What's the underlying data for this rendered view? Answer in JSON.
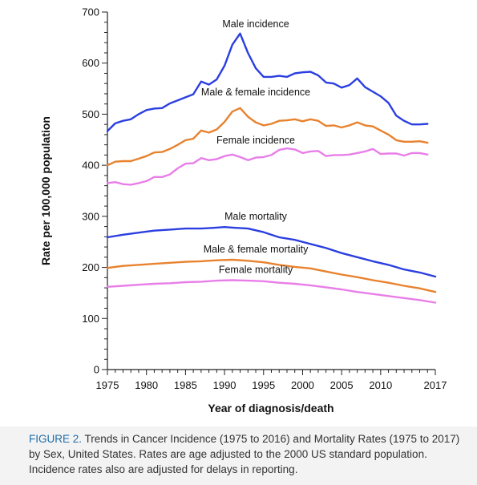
{
  "chart_data": {
    "type": "line",
    "xlabel": "Year of diagnosis/death",
    "ylabel": "Rate per 100,000 population",
    "xlim": [
      1975,
      2017
    ],
    "ylim": [
      0,
      700
    ],
    "x_ticks": [
      1975,
      1980,
      1985,
      1990,
      1995,
      2000,
      2005,
      2010,
      2017
    ],
    "y_ticks": [
      0,
      100,
      200,
      300,
      400,
      500,
      600,
      700
    ],
    "grid": false,
    "series": [
      {
        "name": "Male incidence",
        "color": "#2b3fe0",
        "x": [
          1975,
          1976,
          1977,
          1978,
          1979,
          1980,
          1981,
          1982,
          1983,
          1984,
          1985,
          1986,
          1987,
          1988,
          1989,
          1990,
          1991,
          1992,
          1993,
          1994,
          1995,
          1996,
          1997,
          1998,
          1999,
          2000,
          2001,
          2002,
          2003,
          2004,
          2005,
          2006,
          2007,
          2008,
          2009,
          2010,
          2011,
          2012,
          2013,
          2014,
          2015,
          2016
        ],
        "y": [
          467,
          482,
          487,
          490,
          500,
          508,
          511,
          512,
          521,
          527,
          533,
          539,
          564,
          558,
          568,
          595,
          636,
          658,
          620,
          590,
          573,
          573,
          575,
          573,
          580,
          582,
          583,
          576,
          562,
          560,
          552,
          557,
          570,
          553,
          544,
          535,
          522,
          497,
          487,
          480,
          480,
          481
        ]
      },
      {
        "name": "Male & female incidence",
        "color": "#e8822e",
        "x": [
          1975,
          1976,
          1977,
          1978,
          1979,
          1980,
          1981,
          1982,
          1983,
          1984,
          1985,
          1986,
          1987,
          1988,
          1989,
          1990,
          1991,
          1992,
          1993,
          1994,
          1995,
          1996,
          1997,
          1998,
          1999,
          2000,
          2001,
          2002,
          2003,
          2004,
          2005,
          2006,
          2007,
          2008,
          2009,
          2010,
          2011,
          2012,
          2013,
          2014,
          2015,
          2016
        ],
        "y": [
          400,
          407,
          408,
          408,
          413,
          418,
          425,
          426,
          432,
          440,
          449,
          452,
          468,
          464,
          470,
          485,
          505,
          512,
          495,
          484,
          478,
          481,
          487,
          488,
          490,
          486,
          490,
          487,
          477,
          478,
          474,
          478,
          484,
          478,
          476,
          468,
          460,
          449,
          446,
          446,
          447,
          444
        ]
      },
      {
        "name": "Female incidence",
        "color": "#e87ee8",
        "x": [
          1975,
          1976,
          1977,
          1978,
          1979,
          1980,
          1981,
          1982,
          1983,
          1984,
          1985,
          1986,
          1987,
          1988,
          1989,
          1990,
          1991,
          1992,
          1993,
          1994,
          1995,
          1996,
          1997,
          1998,
          1999,
          2000,
          2001,
          2002,
          2003,
          2004,
          2005,
          2006,
          2007,
          2008,
          2009,
          2010,
          2011,
          2012,
          2013,
          2014,
          2015,
          2016
        ],
        "y": [
          365,
          367,
          363,
          362,
          365,
          369,
          377,
          377,
          382,
          394,
          403,
          404,
          414,
          410,
          412,
          418,
          421,
          416,
          410,
          415,
          416,
          420,
          430,
          433,
          431,
          424,
          427,
          428,
          418,
          420,
          420,
          421,
          424,
          427,
          432,
          422,
          423,
          423,
          419,
          424,
          424,
          421
        ]
      },
      {
        "name": "Male mortality",
        "color": "#2b3fe0",
        "x": [
          1975,
          1977,
          1979,
          1981,
          1983,
          1985,
          1987,
          1989,
          1990,
          1991,
          1993,
          1995,
          1997,
          1999,
          2001,
          2003,
          2005,
          2007,
          2009,
          2011,
          2013,
          2015,
          2017
        ],
        "y": [
          259,
          264,
          268,
          272,
          274,
          276,
          276,
          278,
          279,
          278,
          276,
          269,
          259,
          254,
          246,
          238,
          228,
          220,
          212,
          205,
          196,
          190,
          182
        ]
      },
      {
        "name": "Male & female mortality",
        "color": "#e8822e",
        "x": [
          1975,
          1977,
          1979,
          1981,
          1983,
          1985,
          1987,
          1989,
          1991,
          1993,
          1995,
          1997,
          1999,
          2001,
          2003,
          2005,
          2007,
          2009,
          2011,
          2013,
          2015,
          2017
        ],
        "y": [
          199,
          203,
          205,
          207,
          209,
          211,
          212,
          214,
          215,
          213,
          210,
          205,
          201,
          198,
          192,
          186,
          181,
          175,
          170,
          164,
          159,
          152
        ]
      },
      {
        "name": "Female mortality",
        "color": "#e87ee8",
        "x": [
          1975,
          1977,
          1979,
          1981,
          1983,
          1985,
          1987,
          1989,
          1991,
          1993,
          1995,
          1997,
          1999,
          2001,
          2003,
          2005,
          2007,
          2009,
          2011,
          2013,
          2015,
          2017
        ],
        "y": [
          162,
          164,
          166,
          168,
          169,
          171,
          172,
          174,
          175,
          174,
          173,
          170,
          168,
          165,
          161,
          157,
          152,
          148,
          144,
          140,
          136,
          131
        ]
      }
    ]
  },
  "caption": {
    "lead": "FIGURE 2.",
    "text": "Trends in Cancer Incidence (1975 to 2016) and Mortality Rates (1975 to 2017) by Sex, United States. Rates are age adjusted to the 2000 US standard population. Incidence rates also are adjusted for delays in reporting."
  }
}
